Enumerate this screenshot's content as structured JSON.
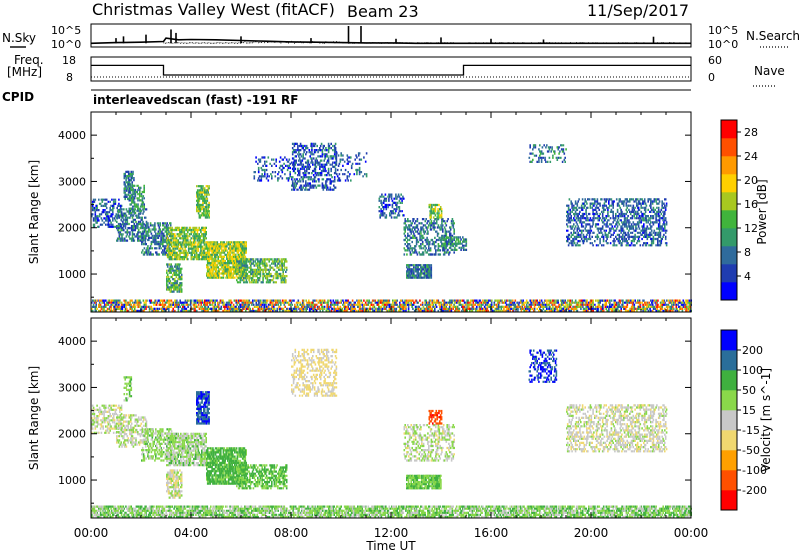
{
  "header": {
    "station": "Christmas Valley West (fitACF)",
    "beam": "Beam 23",
    "date": "11/Sep/2017"
  },
  "left_labels": {
    "nsky": "N.Sky",
    "freq": "Freq.",
    "mhz": "[MHz]",
    "cpid": "CPID"
  },
  "right_labels": {
    "nsearch": "N.Search",
    "nave": "Nave"
  },
  "cpid_text": "interleavedscan (fast) -191 RF",
  "chart_data": [
    {
      "type": "line",
      "name": "noise",
      "series": [
        {
          "name": "N.Sky",
          "style": "solid"
        },
        {
          "name": "N.Search",
          "style": "dotted"
        }
      ],
      "y_ticks_left": [
        "10^5",
        "10^0"
      ],
      "y_ticks_right": [
        "10^5",
        "10^0"
      ],
      "x_range_hours": [
        0,
        24
      ],
      "sky_log10": [
        [
          0,
          0.5
        ],
        [
          0.5,
          0.6
        ],
        [
          1,
          0.7
        ],
        [
          2,
          0.8
        ],
        [
          2.9,
          1.0
        ],
        [
          3.0,
          2.0
        ],
        [
          3.2,
          1.8
        ],
        [
          3.5,
          1.5
        ],
        [
          4,
          1.6
        ],
        [
          5,
          1.5
        ],
        [
          6,
          1.3
        ],
        [
          7,
          1.1
        ],
        [
          8,
          0.9
        ],
        [
          9,
          0.8
        ],
        [
          10,
          0.7
        ],
        [
          11,
          0.6
        ],
        [
          12,
          0.6
        ],
        [
          13,
          0.5
        ],
        [
          14,
          0.5
        ],
        [
          15,
          0.5
        ],
        [
          16,
          0.5
        ],
        [
          17,
          0.5
        ],
        [
          18,
          0.5
        ],
        [
          19,
          0.5
        ],
        [
          20,
          0.5
        ],
        [
          21,
          0.5
        ],
        [
          22,
          0.5
        ],
        [
          23,
          0.5
        ],
        [
          24,
          0.5
        ]
      ],
      "sky_spikes": [
        [
          1.0,
          2.0
        ],
        [
          1.3,
          2.5
        ],
        [
          2.2,
          3.0
        ],
        [
          3.2,
          4.5
        ],
        [
          3.4,
          3.5
        ],
        [
          6.0,
          2.5
        ],
        [
          8.8,
          2.0
        ],
        [
          10.3,
          5.5
        ],
        [
          10.8,
          5.5
        ],
        [
          12.2,
          1.8
        ],
        [
          14.0,
          2.2
        ],
        [
          16.0,
          1.8
        ],
        [
          18.1,
          1.6
        ],
        [
          22.5,
          2.4
        ]
      ]
    },
    {
      "type": "line",
      "name": "frequency",
      "y_left_ticks": [
        18,
        8
      ],
      "y_right_ticks": [
        60,
        0
      ],
      "freq_mhz_steps": [
        [
          0,
          14.5
        ],
        [
          2.9,
          14.5
        ],
        [
          2.9,
          10.5
        ],
        [
          14.9,
          10.5
        ],
        [
          14.9,
          14.5
        ],
        [
          24,
          14.5
        ]
      ],
      "nave_value": 10
    },
    {
      "type": "heatmap",
      "name": "power",
      "title": "",
      "ylabel": "Slant Range [km]",
      "ylim": [
        180,
        4500
      ],
      "y_ticks": [
        1000,
        2000,
        3000,
        4000
      ],
      "x_range_hours": [
        0,
        24
      ],
      "colorbar": {
        "label": "Power [dB]",
        "ticks": [
          4,
          8,
          12,
          16,
          20,
          24,
          28
        ],
        "range": [
          0,
          30
        ],
        "colors": [
          "#0000ff",
          "#1f3cb0",
          "#2f6b9c",
          "#339a6a",
          "#40b43c",
          "#a8c820",
          "#ffd000",
          "#ff9a00",
          "#ff5000",
          "#ff0000"
        ]
      },
      "regions": [
        {
          "t": [
            0.0,
            1.2
          ],
          "r": [
            2000,
            2600
          ],
          "level": 6,
          "d": 0.35
        },
        {
          "t": [
            1.0,
            2.2
          ],
          "r": [
            1700,
            2400
          ],
          "level": 8,
          "d": 0.4
        },
        {
          "t": [
            1.3,
            1.7
          ],
          "r": [
            2600,
            3200
          ],
          "level": 8,
          "d": 0.5
        },
        {
          "t": [
            1.5,
            2.1
          ],
          "r": [
            2300,
            2900
          ],
          "level": 10,
          "d": 0.4
        },
        {
          "t": [
            2.0,
            3.2
          ],
          "r": [
            1400,
            2100
          ],
          "level": 8,
          "d": 0.45
        },
        {
          "t": [
            3.0,
            4.6
          ],
          "r": [
            1300,
            2000
          ],
          "level": 15,
          "d": 0.6
        },
        {
          "t": [
            3.0,
            3.6
          ],
          "r": [
            600,
            1200
          ],
          "level": 12,
          "d": 0.6
        },
        {
          "t": [
            4.2,
            4.7
          ],
          "r": [
            2200,
            2900
          ],
          "level": 14,
          "d": 0.6
        },
        {
          "t": [
            4.6,
            6.2
          ],
          "r": [
            900,
            1700
          ],
          "level": 16,
          "d": 0.7
        },
        {
          "t": [
            5.8,
            7.8
          ],
          "r": [
            800,
            1300
          ],
          "level": 13,
          "d": 0.5
        },
        {
          "t": [
            6.5,
            8.0
          ],
          "r": [
            3000,
            3500
          ],
          "level": 6,
          "d": 0.2
        },
        {
          "t": [
            8.0,
            9.8
          ],
          "r": [
            2800,
            3800
          ],
          "level": 6,
          "d": 0.35
        },
        {
          "t": [
            9.8,
            11.0
          ],
          "r": [
            3000,
            3600
          ],
          "level": 6,
          "d": 0.15
        },
        {
          "t": [
            11.5,
            12.5
          ],
          "r": [
            2200,
            2700
          ],
          "level": 6,
          "d": 0.3
        },
        {
          "t": [
            12.5,
            14.5
          ],
          "r": [
            1400,
            2200
          ],
          "level": 8,
          "d": 0.35
        },
        {
          "t": [
            13.5,
            14.0
          ],
          "r": [
            2200,
            2500
          ],
          "level": 15,
          "d": 0.5
        },
        {
          "t": [
            14.0,
            15.0
          ],
          "r": [
            1500,
            1800
          ],
          "level": 10,
          "d": 0.5
        },
        {
          "t": [
            12.6,
            13.6
          ],
          "r": [
            900,
            1200
          ],
          "level": 8,
          "d": 0.75
        },
        {
          "t": [
            17.5,
            19.0
          ],
          "r": [
            3400,
            3800
          ],
          "level": 8,
          "d": 0.2
        },
        {
          "t": [
            19.0,
            23.0
          ],
          "r": [
            1600,
            2600
          ],
          "level": 7,
          "d": 0.35
        },
        {
          "t": [
            0.0,
            24.0
          ],
          "r": [
            180,
            450
          ],
          "level": 10,
          "d": 0.55
        }
      ]
    },
    {
      "type": "heatmap",
      "name": "velocity",
      "title": "",
      "ylabel": "Slant Range [km]",
      "xlabel": "Time UT",
      "ylim": [
        180,
        4500
      ],
      "y_ticks": [
        1000,
        2000,
        3000,
        4000
      ],
      "x_ticks": [
        "00:00",
        "04:00",
        "08:00",
        "12:00",
        "16:00",
        "20:00",
        "00:00"
      ],
      "x_range_hours": [
        0,
        24
      ],
      "colorbar": {
        "label": "Velocity [m s^-1]",
        "ticks": [
          200,
          100,
          50,
          15,
          -15,
          -50,
          -100,
          -200
        ],
        "colors": [
          "#ff0000",
          "#ff5000",
          "#ffa000",
          "#f0d870",
          "#c8c8c8",
          "#8ad84a",
          "#3fb03f",
          "#2a6e9a",
          "#0000ff"
        ]
      },
      "regions": [
        {
          "t": [
            0.0,
            1.2
          ],
          "r": [
            2000,
            2600
          ],
          "v": 0,
          "d": 0.35
        },
        {
          "t": [
            1.0,
            2.2
          ],
          "r": [
            1700,
            2400
          ],
          "v": 5,
          "d": 0.4
        },
        {
          "t": [
            1.3,
            1.6
          ],
          "r": [
            2700,
            3200
          ],
          "v": 40,
          "d": 0.4
        },
        {
          "t": [
            2.0,
            3.2
          ],
          "r": [
            1400,
            2100
          ],
          "v": 30,
          "d": 0.4
        },
        {
          "t": [
            3.0,
            4.6
          ],
          "r": [
            1300,
            2000
          ],
          "v": 25,
          "d": 0.6
        },
        {
          "t": [
            3.0,
            3.6
          ],
          "r": [
            600,
            1200
          ],
          "v": 0,
          "d": 0.6
        },
        {
          "t": [
            4.2,
            4.7
          ],
          "r": [
            2200,
            2900
          ],
          "v": 190,
          "d": 0.7
        },
        {
          "t": [
            4.6,
            6.2
          ],
          "r": [
            900,
            1700
          ],
          "v": 60,
          "d": 0.7
        },
        {
          "t": [
            5.8,
            7.8
          ],
          "r": [
            800,
            1300
          ],
          "v": 50,
          "d": 0.5
        },
        {
          "t": [
            8.0,
            9.8
          ],
          "r": [
            2800,
            3800
          ],
          "v": -20,
          "d": 0.3
        },
        {
          "t": [
            12.5,
            14.5
          ],
          "r": [
            1400,
            2200
          ],
          "v": 10,
          "d": 0.35
        },
        {
          "t": [
            13.5,
            14.0
          ],
          "r": [
            2200,
            2500
          ],
          "v": -180,
          "d": 0.5
        },
        {
          "t": [
            12.6,
            14.0
          ],
          "r": [
            800,
            1100
          ],
          "v": 55,
          "d": 0.75
        },
        {
          "t": [
            17.5,
            18.6
          ],
          "r": [
            3100,
            3800
          ],
          "v": 200,
          "d": 0.3
        },
        {
          "t": [
            19.0,
            23.0
          ],
          "r": [
            1600,
            2600
          ],
          "v": 0,
          "d": 0.35
        },
        {
          "t": [
            0.0,
            24.0
          ],
          "r": [
            180,
            450
          ],
          "v": 45,
          "d": 0.6
        }
      ]
    }
  ]
}
